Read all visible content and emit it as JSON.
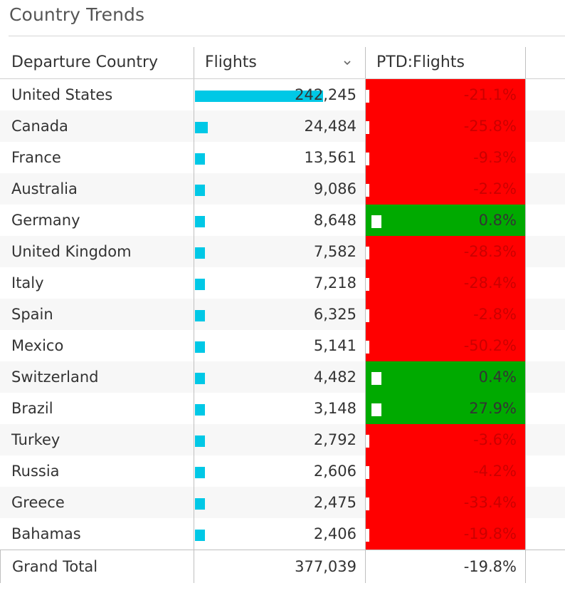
{
  "title": "Country Trends",
  "columns": {
    "country": "Departure Country",
    "flights": "Flights",
    "ptd": "PTD:Flights"
  },
  "colors": {
    "bar": "#00c8e6",
    "negative": "#ff0000",
    "positive": "#00aa00"
  },
  "sort_icon": "chevron-down-icon",
  "rows": [
    {
      "country": "United States",
      "flights": "242,245",
      "flights_value": 242245,
      "ptd": "-21.1%",
      "ptd_value": -21.1
    },
    {
      "country": "Canada",
      "flights": "24,484",
      "flights_value": 24484,
      "ptd": "-25.8%",
      "ptd_value": -25.8
    },
    {
      "country": "France",
      "flights": "13,561",
      "flights_value": 13561,
      "ptd": "-9.3%",
      "ptd_value": -9.3
    },
    {
      "country": "Australia",
      "flights": "9,086",
      "flights_value": 9086,
      "ptd": "-2.2%",
      "ptd_value": -2.2
    },
    {
      "country": "Germany",
      "flights": "8,648",
      "flights_value": 8648,
      "ptd": "0.8%",
      "ptd_value": 0.8
    },
    {
      "country": "United Kingdom",
      "flights": "7,582",
      "flights_value": 7582,
      "ptd": "-28.3%",
      "ptd_value": -28.3
    },
    {
      "country": "Italy",
      "flights": "7,218",
      "flights_value": 7218,
      "ptd": "-28.4%",
      "ptd_value": -28.4
    },
    {
      "country": "Spain",
      "flights": "6,325",
      "flights_value": 6325,
      "ptd": "-2.8%",
      "ptd_value": -2.8
    },
    {
      "country": "Mexico",
      "flights": "5,141",
      "flights_value": 5141,
      "ptd": "-50.2%",
      "ptd_value": -50.2
    },
    {
      "country": "Switzerland",
      "flights": "4,482",
      "flights_value": 4482,
      "ptd": "0.4%",
      "ptd_value": 0.4
    },
    {
      "country": "Brazil",
      "flights": "3,148",
      "flights_value": 3148,
      "ptd": "27.9%",
      "ptd_value": 27.9
    },
    {
      "country": "Turkey",
      "flights": "2,792",
      "flights_value": 2792,
      "ptd": "-3.6%",
      "ptd_value": -3.6
    },
    {
      "country": "Russia",
      "flights": "2,606",
      "flights_value": 2606,
      "ptd": "-4.2%",
      "ptd_value": -4.2
    },
    {
      "country": "Greece",
      "flights": "2,475",
      "flights_value": 2475,
      "ptd": "-33.4%",
      "ptd_value": -33.4
    },
    {
      "country": "Bahamas",
      "flights": "2,406",
      "flights_value": 2406,
      "ptd": "-19.8%",
      "ptd_value": -19.8
    }
  ],
  "total": {
    "label": "Grand Total",
    "flights": "377,039",
    "ptd": "-19.8%"
  }
}
